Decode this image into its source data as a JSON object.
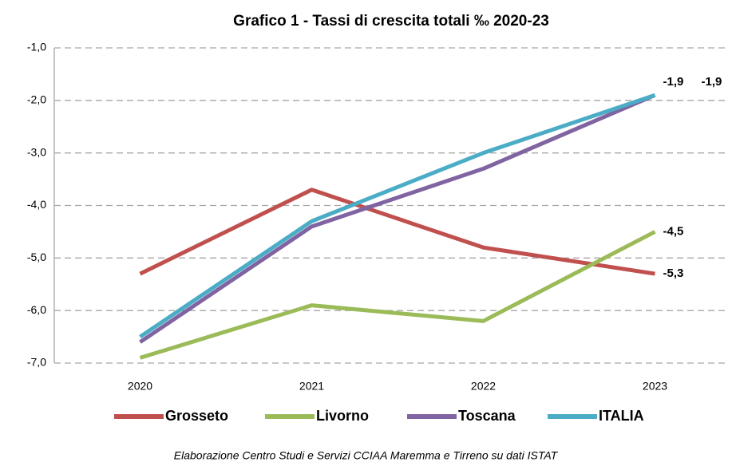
{
  "chart_data": {
    "type": "line",
    "title": "Grafico 1 - Tassi di crescita totali ‰ 2020-23",
    "categories": [
      "2020",
      "2021",
      "2022",
      "2023"
    ],
    "series": [
      {
        "name": "Grosseto",
        "color": "#c0504d",
        "label_color": "#c00000",
        "values": [
          -5.3,
          -3.7,
          -4.8,
          -5.3
        ],
        "value_labels": [
          null,
          null,
          null,
          "-5,3"
        ]
      },
      {
        "name": "Livorno",
        "color": "#9bbb59",
        "label_color": "#77933c",
        "values": [
          -6.9,
          -5.9,
          -6.2,
          -4.5
        ],
        "value_labels": [
          null,
          null,
          null,
          "-4,5"
        ]
      },
      {
        "name": "Toscana",
        "color": "#8064a2",
        "label_color": "#7030a0",
        "values": [
          -6.6,
          -4.4,
          -3.3,
          -1.9
        ],
        "value_labels": [
          null,
          null,
          null,
          "-1,9"
        ]
      },
      {
        "name": "ITALIA",
        "color": "#4bacc6",
        "label_color": "#00b0f0",
        "values": [
          -6.5,
          -4.3,
          -3.0,
          -1.9
        ],
        "value_labels": [
          null,
          null,
          null,
          "-1,9"
        ]
      }
    ],
    "ylim": [
      -7,
      -1
    ],
    "yticks": [
      {
        "value": -7,
        "label": "-7,0"
      },
      {
        "value": -6,
        "label": "-6,0"
      },
      {
        "value": -5,
        "label": "-5,0"
      },
      {
        "value": -4,
        "label": "-4,0"
      },
      {
        "value": -3,
        "label": "-3,0"
      },
      {
        "value": -2,
        "label": "-2,0"
      },
      {
        "value": -1,
        "label": "-1,0"
      }
    ],
    "grid": true,
    "legend": "bottom",
    "source": "Elaborazione Centro Studi e Servizi CCIAA Maremma e Tirreno su dati ISTAT"
  }
}
